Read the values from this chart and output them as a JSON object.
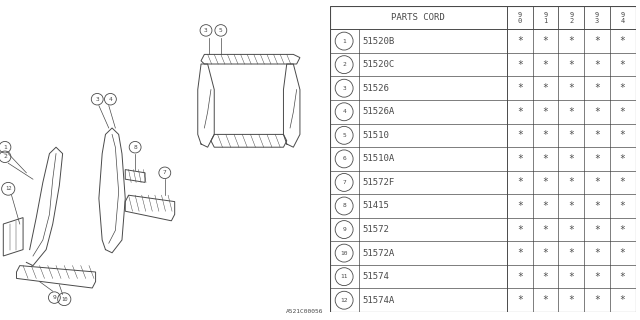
{
  "diagram_label": "A521C00056",
  "rows": [
    [
      "1",
      "51520B"
    ],
    [
      "2",
      "51520C"
    ],
    [
      "3",
      "51526"
    ],
    [
      "4",
      "51526A"
    ],
    [
      "5",
      "51510"
    ],
    [
      "6",
      "51510A"
    ],
    [
      "7",
      "51572F"
    ],
    [
      "8",
      "51415"
    ],
    [
      "9",
      "51572"
    ],
    [
      "10",
      "51572A"
    ],
    [
      "11",
      "51574"
    ],
    [
      "12",
      "51574A"
    ]
  ],
  "year_cols": [
    "9\n0",
    "9\n1",
    "9\n2",
    "9\n3",
    "9\n4"
  ],
  "bg_color": "#ffffff",
  "line_color": "#4a4a4a",
  "text_color": "#4a4a4a",
  "table_font_size": 6.5,
  "draw_font_size": 5.0
}
